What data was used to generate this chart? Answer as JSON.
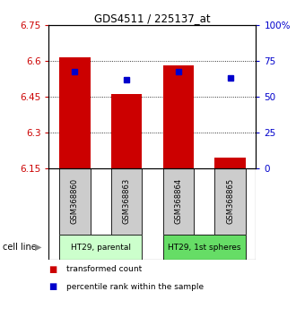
{
  "title": "GDS4511 / 225137_at",
  "samples": [
    "GSM368860",
    "GSM368863",
    "GSM368864",
    "GSM368865"
  ],
  "bar_values": [
    6.614,
    6.462,
    6.582,
    6.193
  ],
  "bar_base": 6.15,
  "percentile_values": [
    67.5,
    62.0,
    67.5,
    63.0
  ],
  "ylim_left": [
    6.15,
    6.75
  ],
  "ylim_right": [
    0,
    100
  ],
  "yticks_left": [
    6.15,
    6.3,
    6.45,
    6.6,
    6.75
  ],
  "yticks_right": [
    0,
    25,
    50,
    75,
    100
  ],
  "ytick_labels_left": [
    "6.15",
    "6.3",
    "6.45",
    "6.6",
    "6.75"
  ],
  "ytick_labels_right": [
    "0",
    "25",
    "50",
    "75",
    "100%"
  ],
  "bar_color": "#cc0000",
  "dot_color": "#0000cc",
  "cell_line_groups": [
    {
      "label": "HT29, parental",
      "samples": [
        0,
        1
      ],
      "color": "#ccffcc"
    },
    {
      "label": "HT29, 1st spheres",
      "samples": [
        2,
        3
      ],
      "color": "#66dd66"
    }
  ],
  "cell_line_label": "cell line",
  "legend_items": [
    {
      "label": "transformed count",
      "color": "#cc0000"
    },
    {
      "label": "percentile rank within the sample",
      "color": "#0000cc"
    }
  ],
  "bar_width": 0.6,
  "sample_box_color": "#cccccc",
  "fig_width": 3.3,
  "fig_height": 3.54,
  "dpi": 100
}
